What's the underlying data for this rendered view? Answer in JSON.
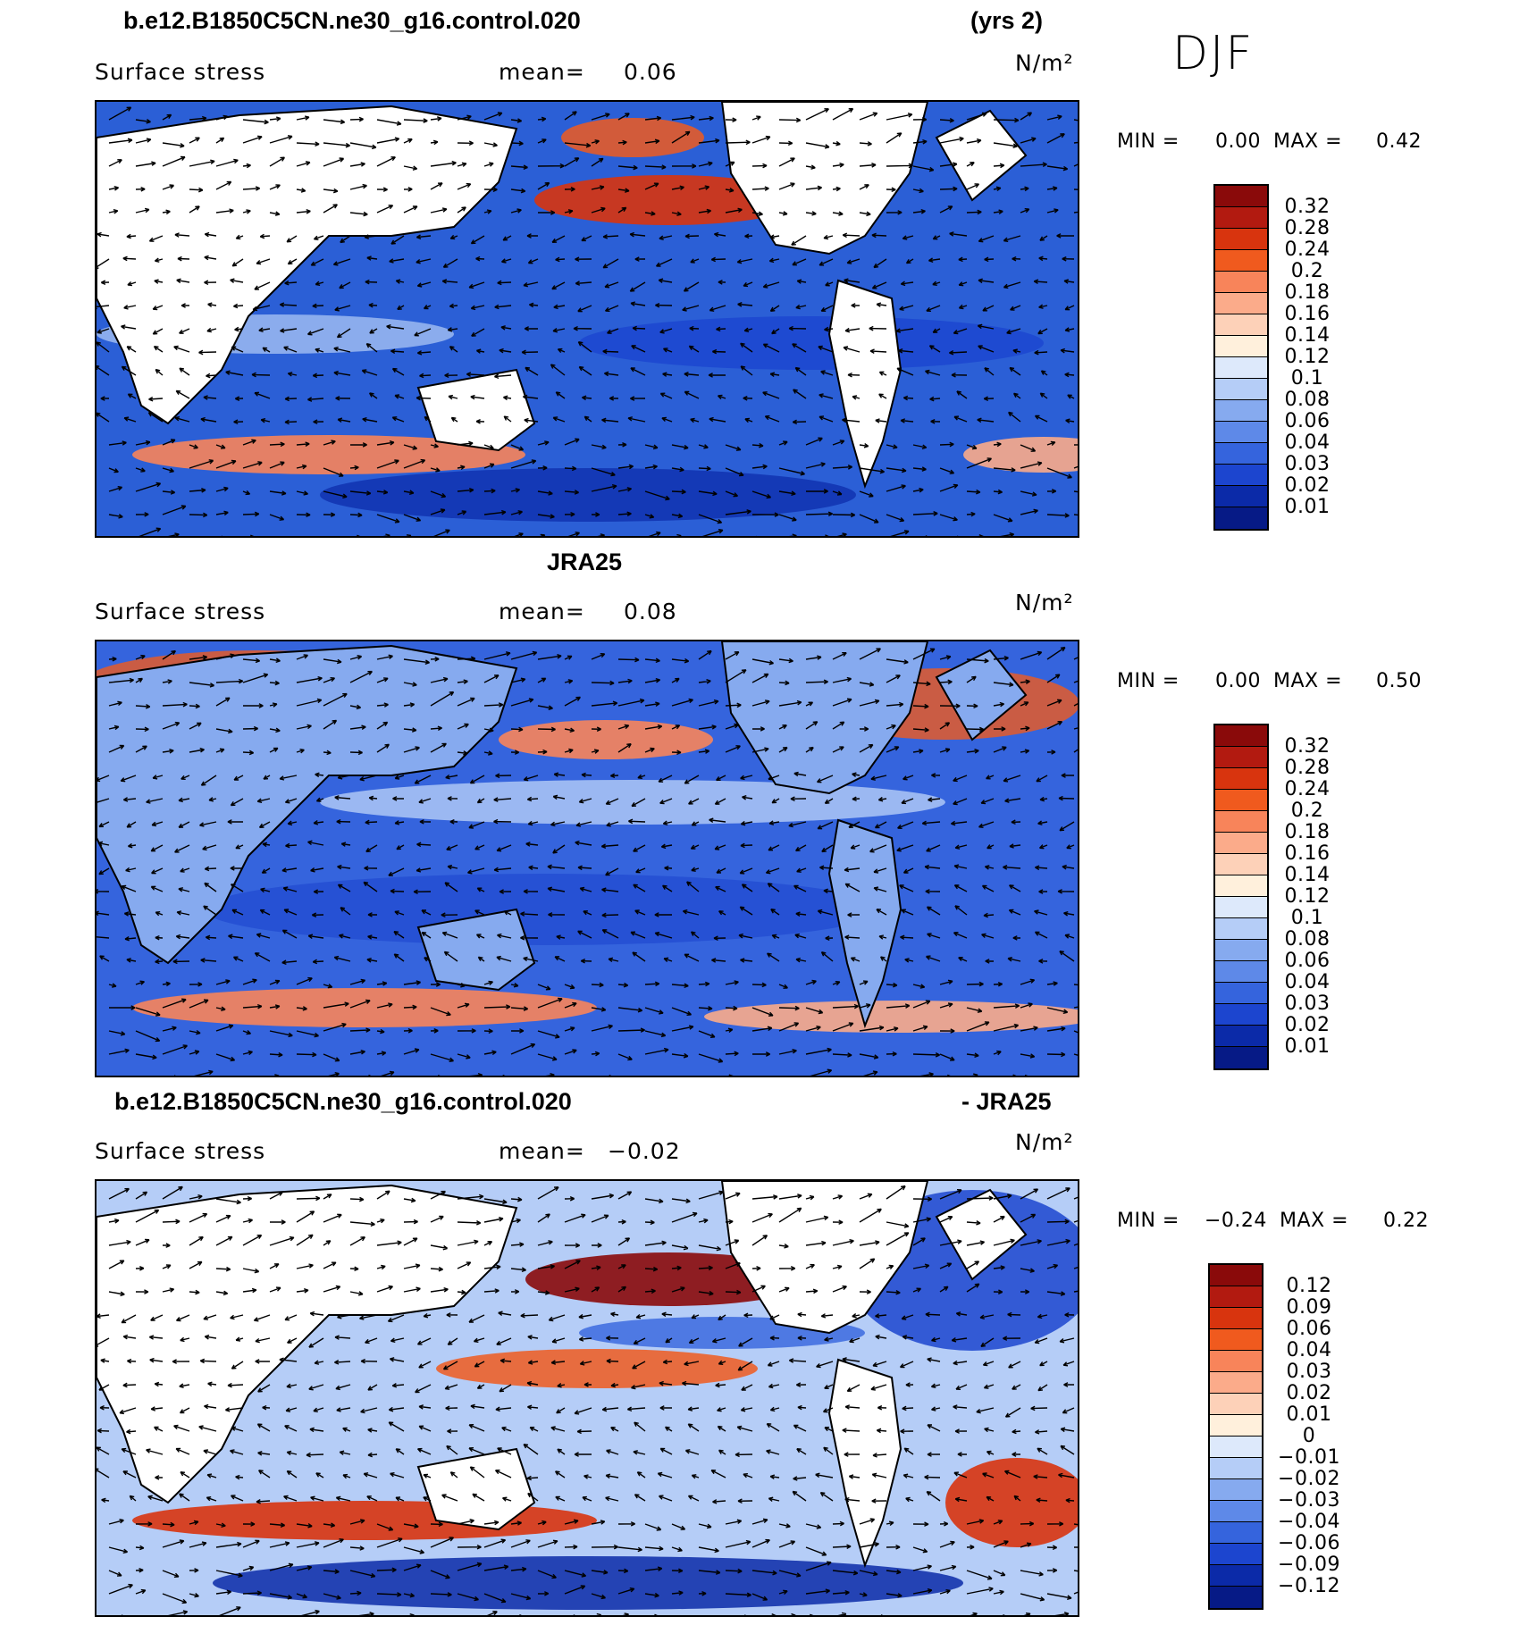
{
  "season": "DJF",
  "panels": [
    {
      "title_left": "b.e12.B1850C5CN.ne30_g16.control.020",
      "title_right": "(yrs 2)",
      "variable": "Surface stress",
      "mean_label": "mean=",
      "mean_value": "0.06",
      "units": "N/m²",
      "min_label": "MIN =",
      "min_value": "0.00",
      "max_label": "MAX =",
      "max_value": "0.42",
      "colorbar_ticks": [
        "0.32",
        "0.28",
        "0.24",
        "0.2",
        "0.18",
        "0.16",
        "0.14",
        "0.12",
        "0.1",
        "0.08",
        "0.06",
        "0.04",
        "0.03",
        "0.02",
        "0.01"
      ],
      "colorbar_colors": [
        "#8a0a0a",
        "#b21a10",
        "#d8340e",
        "#f05a1e",
        "#f8845a",
        "#fbab8a",
        "#fdd1b8",
        "#fff0dc",
        "#dde9fb",
        "#b5cdf7",
        "#86aaef",
        "#5e89e8",
        "#3564dd",
        "#1c45cf",
        "#0b2aa8",
        "#061a86"
      ]
    },
    {
      "title_left": "JRA25",
      "title_right": "",
      "variable": "Surface stress",
      "mean_label": "mean=",
      "mean_value": "0.08",
      "units": "N/m²",
      "min_label": "MIN =",
      "min_value": "0.00",
      "max_label": "MAX =",
      "max_value": "0.50",
      "colorbar_ticks": [
        "0.32",
        "0.28",
        "0.24",
        "0.2",
        "0.18",
        "0.16",
        "0.14",
        "0.12",
        "0.1",
        "0.08",
        "0.06",
        "0.04",
        "0.03",
        "0.02",
        "0.01"
      ],
      "colorbar_colors": [
        "#8a0a0a",
        "#b21a10",
        "#d8340e",
        "#f05a1e",
        "#f8845a",
        "#fbab8a",
        "#fdd1b8",
        "#fff0dc",
        "#dde9fb",
        "#b5cdf7",
        "#86aaef",
        "#5e89e8",
        "#3564dd",
        "#1c45cf",
        "#0b2aa8",
        "#061a86"
      ]
    },
    {
      "title_left": "b.e12.B1850C5CN.ne30_g16.control.020",
      "title_right": "- JRA25",
      "variable": "Surface stress",
      "mean_label": "mean=",
      "mean_value": "−0.02",
      "units": "N/m²",
      "min_label": "MIN =",
      "min_value": "−0.24",
      "max_label": "MAX =",
      "max_value": "0.22",
      "colorbar_ticks": [
        "0.12",
        "0.09",
        "0.06",
        "0.04",
        "0.03",
        "0.02",
        "0.01",
        "0",
        "−0.01",
        "−0.02",
        "−0.03",
        "−0.04",
        "−0.06",
        "−0.09",
        "−0.12"
      ],
      "colorbar_colors": [
        "#8a0a0a",
        "#b21a10",
        "#d8340e",
        "#f05a1e",
        "#f8845a",
        "#fbab8a",
        "#fdd1b8",
        "#fff0dc",
        "#dde9fb",
        "#b5cdf7",
        "#86aaef",
        "#5e89e8",
        "#3564dd",
        "#1c45cf",
        "#0b2aa8",
        "#061a86"
      ]
    }
  ],
  "colors": {
    "ocean_base": "#2b5fd6",
    "land": "#ffffff",
    "coast": "#000000"
  }
}
